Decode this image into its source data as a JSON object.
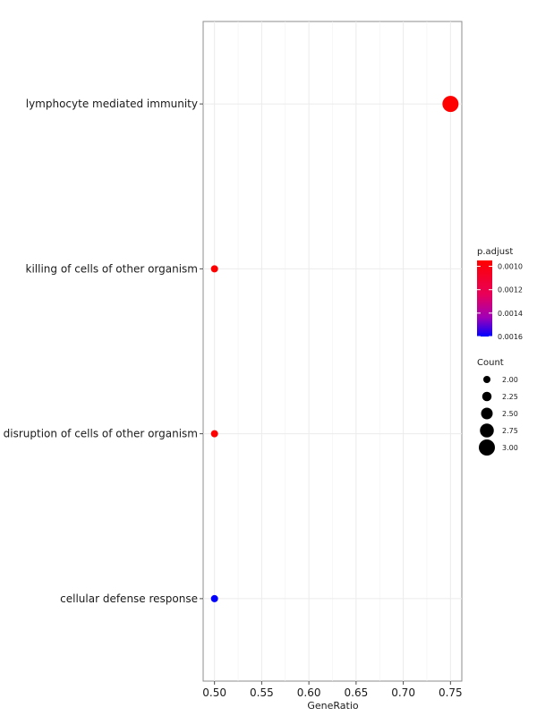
{
  "chart_data": {
    "type": "scatter",
    "xlabel": "GeneRatio",
    "xlim": [
      0.488,
      0.762
    ],
    "xticks": [
      "0.50",
      "0.55",
      "0.60",
      "0.65",
      "0.70",
      "0.75"
    ],
    "grid": true,
    "categories": [
      "lymphocyte mediated immunity",
      "killing of cells of other organism",
      "disruption of cells of other organism",
      "cellular defense response"
    ],
    "points": [
      {
        "term": "lymphocyte mediated immunity",
        "x": 0.75,
        "count": 3,
        "p_adjust": 0.00095
      },
      {
        "term": "killing of cells of other organism",
        "x": 0.5,
        "count": 2,
        "p_adjust": 0.00095
      },
      {
        "term": "disruption of cells of other organism",
        "x": 0.5,
        "count": 2,
        "p_adjust": 0.00095
      },
      {
        "term": "cellular defense response",
        "x": 0.5,
        "count": 2,
        "p_adjust": 0.0016
      }
    ],
    "color_legend": {
      "title": "p.adjust",
      "ticks": [
        "0.0010",
        "0.0012",
        "0.0014",
        "0.0016"
      ],
      "range": [
        0.00095,
        0.0016
      ],
      "low_color": "#ff0000",
      "high_color": "#0000ff"
    },
    "size_legend": {
      "title": "Count",
      "labels": [
        "2.00",
        "2.25",
        "2.50",
        "2.75",
        "3.00"
      ]
    },
    "legend_position": "right"
  }
}
